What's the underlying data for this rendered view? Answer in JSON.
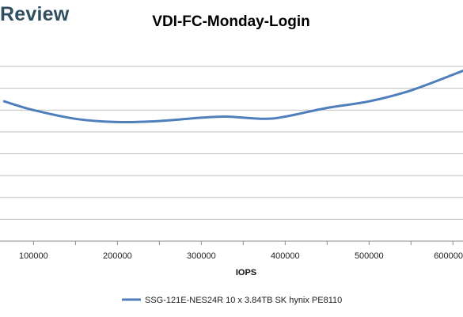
{
  "logo": {
    "text": "Review"
  },
  "chart_data": {
    "type": "line",
    "title": "VDI-FC-Monday-Login",
    "xlabel": "IOPS",
    "ylabel": "",
    "x_ticks": [
      100000,
      200000,
      300000,
      400000,
      500000,
      600000
    ],
    "x_tick_labels": [
      "100000",
      "200000",
      "300000",
      "400000",
      "500000",
      "600000"
    ],
    "xlim": [
      60000,
      612000
    ],
    "ylim": [
      0,
      8
    ],
    "y_gridlines": [
      0,
      1,
      2,
      3,
      4,
      5,
      6,
      7,
      8
    ],
    "grid": true,
    "legend_position": "bottom",
    "series": [
      {
        "name": "SSG-121E-NES24R 10 x 3.84TB SK hynix PE8110",
        "color": "#4f7ebd",
        "x": [
          65000,
          100000,
          150000,
          200000,
          250000,
          300000,
          330000,
          375000,
          400000,
          450000,
          500000,
          550000,
          612000
        ],
        "y": [
          6.4,
          6.0,
          5.6,
          5.45,
          5.5,
          5.65,
          5.7,
          5.6,
          5.7,
          6.1,
          6.4,
          6.9,
          7.8
        ]
      }
    ]
  }
}
